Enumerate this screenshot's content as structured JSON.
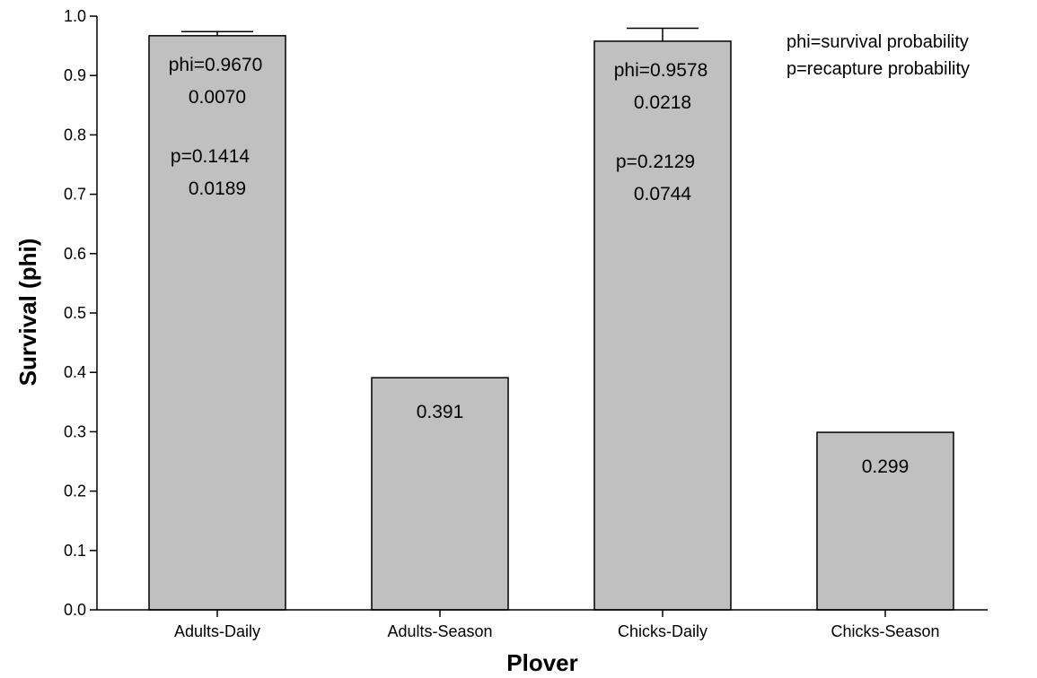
{
  "chart_data": {
    "type": "bar",
    "title": "",
    "xlabel": "Plover",
    "ylabel": "Survival (phi)",
    "ylim": [
      0,
      1.0
    ],
    "yticks": [
      "0.0",
      "0.1",
      "0.2",
      "0.3",
      "0.4",
      "0.5",
      "0.6",
      "0.7",
      "0.8",
      "0.9",
      "1.0"
    ],
    "categories": [
      "Adults-Daily",
      "Adults-Season",
      "Chicks-Daily",
      "Chicks-Season"
    ],
    "values": [
      0.967,
      0.391,
      0.9578,
      0.299
    ],
    "error_bars": [
      0.007,
      null,
      0.0218,
      null
    ],
    "bar_color": "#c0c0c0",
    "grid": false,
    "annotations": [
      [
        "phi=0.9670",
        "0.0070",
        "p=0.1414",
        "0.0189"
      ],
      [
        "0.391"
      ],
      [
        "phi=0.9578",
        "0.0218",
        "p=0.2129",
        "0.0744"
      ],
      [
        "0.299"
      ]
    ],
    "legend_note": [
      "phi=survival probability",
      "p=recapture probability"
    ],
    "legend_position": "top-right"
  }
}
